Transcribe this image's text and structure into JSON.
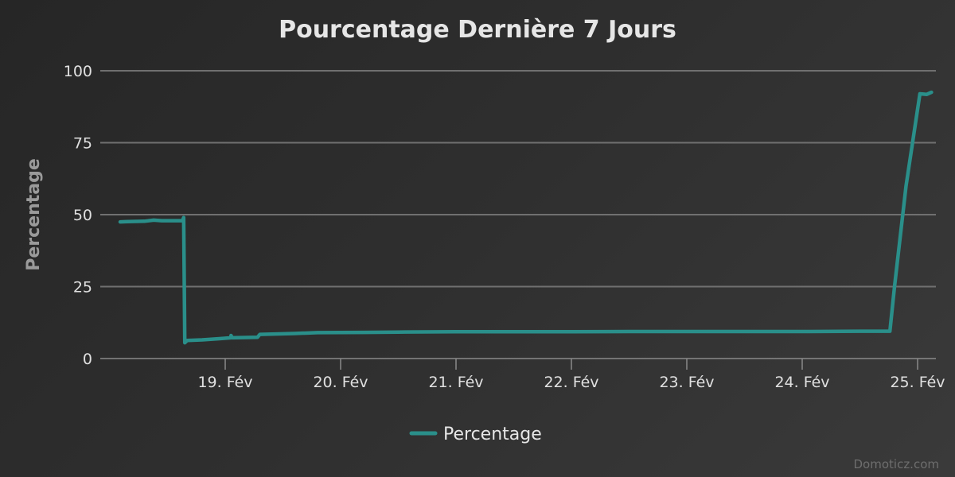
{
  "chart_data": {
    "type": "line",
    "title": "Pourcentage Dernière 7 Jours",
    "ylabel": "Percentage",
    "xlabel": "",
    "ylim": [
      0,
      100
    ],
    "yticks": [
      0,
      25,
      50,
      75,
      100
    ],
    "xticks": [
      {
        "day": 19,
        "label": "19. Fév"
      },
      {
        "day": 20,
        "label": "20. Fév"
      },
      {
        "day": 21,
        "label": "21. Fév"
      },
      {
        "day": 22,
        "label": "22. Fév"
      },
      {
        "day": 23,
        "label": "23. Fév"
      },
      {
        "day": 24,
        "label": "24. Fév"
      },
      {
        "day": 25,
        "label": "25. Fév"
      }
    ],
    "x_unit": "day of February",
    "grid": true,
    "legend_position": "bottom-center",
    "color": "#2a8f8a",
    "series": [
      {
        "name": "Percentage",
        "points": [
          [
            18.09,
            47.5
          ],
          [
            18.15,
            47.6
          ],
          [
            18.3,
            47.7
          ],
          [
            18.38,
            48.1
          ],
          [
            18.45,
            47.9
          ],
          [
            18.55,
            47.9
          ],
          [
            18.63,
            47.9
          ],
          [
            18.64,
            49.0
          ],
          [
            18.65,
            5.5
          ],
          [
            18.67,
            6.3
          ],
          [
            18.8,
            6.5
          ],
          [
            18.95,
            6.9
          ],
          [
            19.05,
            7.2
          ],
          [
            19.05,
            8.0
          ],
          [
            19.06,
            7.2
          ],
          [
            19.28,
            7.4
          ],
          [
            19.3,
            8.4
          ],
          [
            19.6,
            8.7
          ],
          [
            19.8,
            9.0
          ],
          [
            20.2,
            9.1
          ],
          [
            20.5,
            9.2
          ],
          [
            21.0,
            9.3
          ],
          [
            21.5,
            9.3
          ],
          [
            22.0,
            9.3
          ],
          [
            22.5,
            9.4
          ],
          [
            23.0,
            9.4
          ],
          [
            23.5,
            9.4
          ],
          [
            24.0,
            9.4
          ],
          [
            24.5,
            9.5
          ],
          [
            24.76,
            9.5
          ],
          [
            24.8,
            25.0
          ],
          [
            24.9,
            60.0
          ],
          [
            25.02,
            92.0
          ],
          [
            25.08,
            91.8
          ],
          [
            25.12,
            92.5
          ]
        ]
      }
    ]
  },
  "legend": {
    "label": "Percentage"
  },
  "credit": "Domoticz.com"
}
